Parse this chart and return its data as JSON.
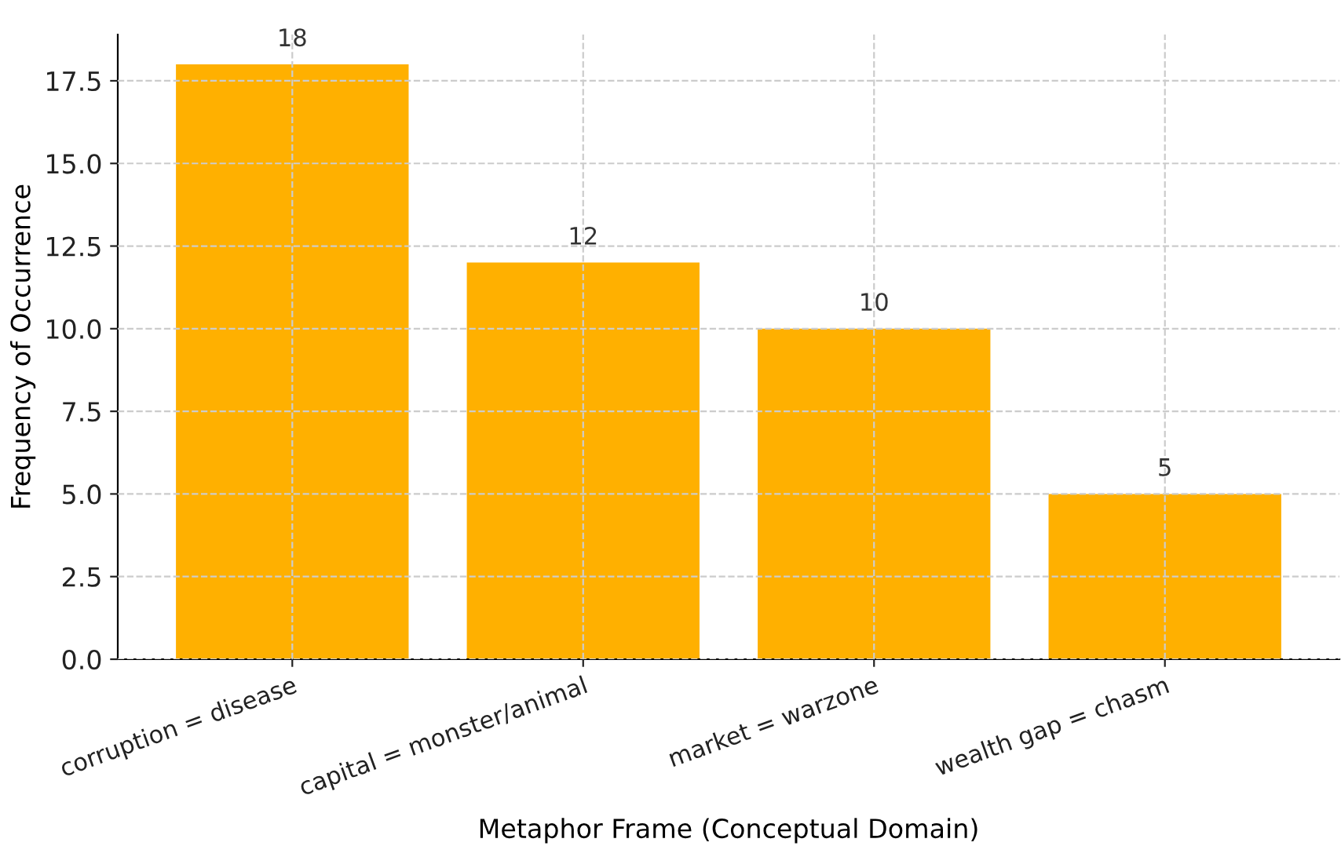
{
  "chart_data": {
    "type": "bar",
    "xlabel": "Metaphor Frame (Conceptual Domain)",
    "ylabel": "Frequency of Occurrence",
    "categories": [
      "corruption = disease",
      "capital = monster/animal",
      "market = warzone",
      "wealth gap = chasm"
    ],
    "values": [
      18,
      12,
      10,
      5
    ],
    "color": "#ffb000",
    "ylim": [
      0,
      18.9
    ],
    "yticks": [
      {
        "value": 0,
        "label": "0.0"
      },
      2.5,
      {
        "value": 5,
        "label": "5.0"
      },
      7.5,
      {
        "value": 10,
        "label": "10.0"
      },
      12.5,
      {
        "value": 15,
        "label": "15.0"
      },
      17.5
    ],
    "grid": true,
    "data_labels": true
  }
}
